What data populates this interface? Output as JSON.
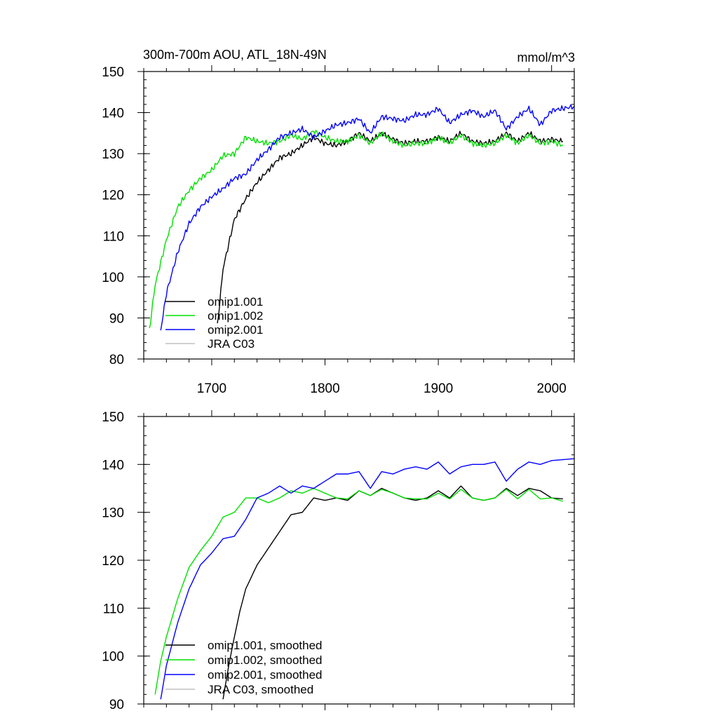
{
  "chart_data": [
    {
      "type": "line",
      "title": "300m-700m AOU, ATL_18N-49N",
      "units": "mmol/m^3",
      "xlim": [
        1640,
        2020
      ],
      "ylim": [
        80,
        150
      ],
      "xticks": [
        1700,
        1800,
        1900,
        2000
      ],
      "yticks": [
        80,
        90,
        100,
        110,
        120,
        130,
        140,
        150
      ],
      "x_tick_labels": [
        "1700",
        "1800",
        "1900",
        "2000"
      ],
      "y_tick_labels": [
        "80",
        "90",
        "100",
        "110",
        "120",
        "130",
        "140",
        "150"
      ],
      "legend_position": "bottom-left",
      "series": [
        {
          "name": "omip1.001",
          "color": "#000000",
          "x": [
            1705,
            1710,
            1720,
            1730,
            1740,
            1750,
            1760,
            1770,
            1780,
            1790,
            1800,
            1810,
            1820,
            1830,
            1840,
            1850,
            1860,
            1870,
            1880,
            1890,
            1900,
            1910,
            1920,
            1930,
            1940,
            1950,
            1960,
            1970,
            1980,
            1990,
            2000,
            2010
          ],
          "y": [
            88,
            102,
            114,
            119,
            123,
            126,
            129,
            130,
            132,
            134,
            132.5,
            132,
            133,
            135,
            133,
            135,
            133.5,
            132.5,
            133,
            133,
            134,
            133,
            135,
            133,
            132.5,
            133,
            135,
            133,
            135,
            133,
            133.5,
            133
          ]
        },
        {
          "name": "omip1.002",
          "color": "#00e000",
          "x": [
            1645,
            1650,
            1660,
            1670,
            1680,
            1690,
            1700,
            1710,
            1720,
            1730,
            1740,
            1750,
            1760,
            1770,
            1780,
            1790,
            1800,
            1810,
            1820,
            1830,
            1840,
            1850,
            1860,
            1870,
            1880,
            1890,
            1900,
            1910,
            1920,
            1930,
            1940,
            1950,
            1960,
            1970,
            1980,
            1990,
            2000,
            2010
          ],
          "y": [
            87,
            98,
            109,
            117,
            121,
            124,
            126,
            129.5,
            130,
            134,
            133,
            132.5,
            133,
            134.5,
            133.5,
            135.5,
            134,
            133,
            133,
            134.5,
            132.5,
            135,
            133,
            132,
            132.5,
            132.5,
            134,
            132.5,
            134.5,
            132.5,
            132,
            132.5,
            134.5,
            132.5,
            134.5,
            132.5,
            133,
            132
          ]
        },
        {
          "name": "omip2.001",
          "color": "#0000ff",
          "x": [
            1655,
            1660,
            1670,
            1680,
            1690,
            1700,
            1710,
            1720,
            1730,
            1740,
            1750,
            1760,
            1770,
            1780,
            1790,
            1800,
            1810,
            1820,
            1830,
            1840,
            1850,
            1860,
            1870,
            1880,
            1890,
            1900,
            1910,
            1920,
            1930,
            1940,
            1950,
            1960,
            1970,
            1980,
            1990,
            2000,
            2010,
            2020
          ],
          "y": [
            87,
            96,
            106,
            113,
            117,
            119.5,
            121.5,
            124,
            125,
            128.5,
            131,
            134,
            135,
            136,
            134,
            135.5,
            137,
            137.5,
            138.5,
            135,
            139,
            138.5,
            138,
            139.5,
            139.5,
            141,
            137.5,
            139.5,
            140.5,
            139,
            140.5,
            136,
            139,
            141,
            137,
            140.5,
            141,
            141.5
          ]
        },
        {
          "name": "JRA C03",
          "color": "#c0c0c0",
          "x": [],
          "y": []
        }
      ]
    },
    {
      "type": "line",
      "title": "",
      "xlim": [
        1640,
        2020
      ],
      "ylim": [
        90,
        150
      ],
      "xticks": [
        1700,
        1800,
        1900,
        2000
      ],
      "yticks": [
        90,
        100,
        110,
        120,
        130,
        140,
        150
      ],
      "y_tick_labels": [
        "90",
        "100",
        "110",
        "120",
        "130",
        "140",
        "150"
      ],
      "legend_position": "bottom-left",
      "series": [
        {
          "name": "omip1.001, smoothed",
          "color": "#000000",
          "x": [
            1710,
            1715,
            1720,
            1725,
            1730,
            1740,
            1750,
            1760,
            1770,
            1780,
            1790,
            1800,
            1810,
            1820,
            1830,
            1840,
            1850,
            1860,
            1870,
            1880,
            1890,
            1900,
            1910,
            1920,
            1930,
            1940,
            1950,
            1960,
            1970,
            1980,
            1990,
            2000,
            2010
          ],
          "y": [
            91,
            98,
            104,
            109.5,
            114,
            119,
            122.5,
            126,
            129.5,
            130,
            133,
            132.5,
            133,
            132.5,
            134.5,
            133.5,
            135,
            134,
            133,
            132.5,
            133,
            134.5,
            133,
            135.5,
            133,
            132.5,
            133,
            135,
            133.5,
            135,
            134.5,
            133,
            132.8
          ]
        },
        {
          "name": "omip1.002, smoothed",
          "color": "#00e000",
          "x": [
            1650,
            1655,
            1660,
            1670,
            1680,
            1690,
            1700,
            1710,
            1720,
            1730,
            1740,
            1750,
            1760,
            1770,
            1780,
            1790,
            1800,
            1810,
            1820,
            1830,
            1840,
            1850,
            1860,
            1870,
            1880,
            1890,
            1900,
            1910,
            1920,
            1930,
            1940,
            1950,
            1960,
            1970,
            1980,
            1990,
            2000,
            2010
          ],
          "y": [
            92,
            99,
            104,
            112,
            118.5,
            122,
            125,
            129,
            130,
            133,
            133,
            132,
            133,
            134.5,
            134,
            135,
            134,
            133,
            132.8,
            134.5,
            133.5,
            134.8,
            134,
            133,
            132.8,
            132.8,
            134,
            132.8,
            134.8,
            133,
            132.5,
            133,
            134.8,
            132.8,
            134.8,
            132.8,
            133,
            132.3
          ]
        },
        {
          "name": "omip2.001, smoothed",
          "color": "#0000ff",
          "x": [
            1655,
            1660,
            1670,
            1680,
            1690,
            1700,
            1710,
            1720,
            1730,
            1740,
            1750,
            1760,
            1770,
            1780,
            1790,
            1800,
            1810,
            1820,
            1830,
            1840,
            1850,
            1860,
            1870,
            1880,
            1890,
            1900,
            1910,
            1920,
            1930,
            1940,
            1950,
            1960,
            1970,
            1980,
            1990,
            2000,
            2010,
            2020
          ],
          "y": [
            91,
            98,
            107,
            114,
            119,
            121.5,
            124.5,
            125,
            128.5,
            133,
            134,
            135.5,
            134,
            135.5,
            135,
            136.5,
            138,
            138,
            138.5,
            135,
            138.5,
            138,
            139,
            139.5,
            139,
            140.5,
            138,
            139.5,
            140,
            140,
            140.5,
            136.5,
            139,
            140.5,
            140,
            140.8,
            141,
            141.2
          ]
        },
        {
          "name": "JRA C03, smoothed",
          "color": "#c0c0c0",
          "x": [],
          "y": []
        }
      ]
    }
  ]
}
